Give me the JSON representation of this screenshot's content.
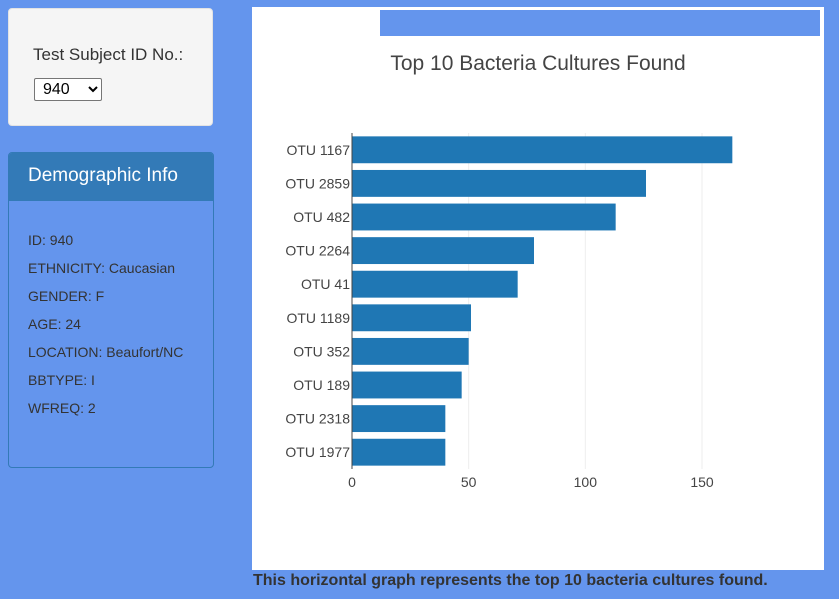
{
  "selector": {
    "label": "Test Subject ID No.:",
    "selected": "940",
    "options": [
      "940"
    ]
  },
  "demographics": {
    "title": "Demographic Info",
    "lines": [
      "ID: 940",
      "ETHNICITY: Caucasian",
      "GENDER: F",
      "AGE: 24",
      "LOCATION: Beaufort/NC",
      "BBTYPE: I",
      "WFREQ: 2"
    ]
  },
  "caption": "This horizontal graph represents the top 10 bacteria cultures found.",
  "colors": {
    "page_background": "#6495ED",
    "bar": "#1f77b4",
    "panel_heading": "#337ab7"
  },
  "chart_data": {
    "type": "bar",
    "orientation": "horizontal",
    "title": "Top 10 Bacteria Cultures Found",
    "xlabel": "",
    "ylabel": "",
    "categories": [
      "OTU 1167",
      "OTU 2859",
      "OTU 482",
      "OTU 2264",
      "OTU 41",
      "OTU 1189",
      "OTU 352",
      "OTU 189",
      "OTU 2318",
      "OTU 1977"
    ],
    "values": [
      163,
      126,
      113,
      78,
      71,
      51,
      50,
      47,
      40,
      40
    ],
    "xlim": [
      0,
      186
    ],
    "xticks": [
      0,
      50,
      100,
      150
    ],
    "grid": true,
    "legend": "none"
  }
}
